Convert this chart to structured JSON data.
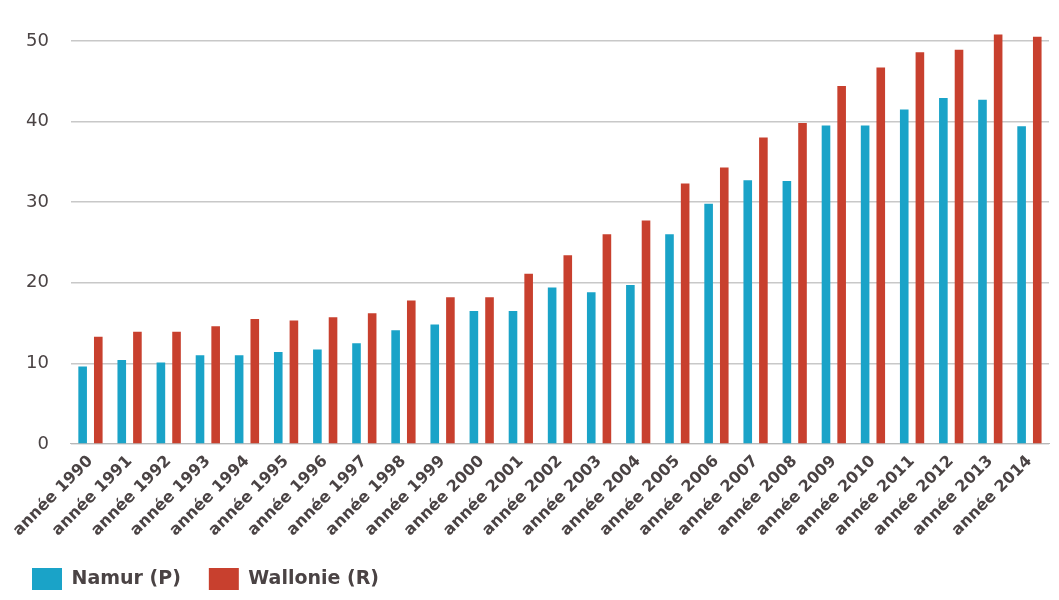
{
  "chart_data": {
    "type": "bar",
    "categories": [
      "année 1990",
      "année 1991",
      "année 1992",
      "année 1993",
      "année 1994",
      "année 1995",
      "année 1996",
      "année 1997",
      "année 1998",
      "année 1999",
      "année 2000",
      "année 2001",
      "année 2002",
      "année 2003",
      "année 2004",
      "année 2005",
      "année 2006",
      "année 2007",
      "année 2008",
      "année 2009",
      "année 2010",
      "année 2011",
      "année 2012",
      "année 2013",
      "année 2014"
    ],
    "series": [
      {
        "name": "Namur (P)",
        "color": "#1aa3c8",
        "values": [
          9.6,
          10.4,
          10.1,
          11.0,
          11.0,
          11.4,
          11.7,
          12.5,
          14.1,
          14.8,
          16.5,
          16.5,
          19.4,
          18.8,
          19.7,
          26.0,
          29.8,
          32.7,
          32.6,
          39.5,
          39.5,
          41.5,
          42.9,
          42.7,
          39.4
        ]
      },
      {
        "name": "Wallonie (R)",
        "color": "#c8402e",
        "values": [
          13.3,
          13.9,
          13.9,
          14.6,
          15.5,
          15.3,
          15.7,
          16.2,
          17.8,
          18.2,
          18.2,
          21.1,
          23.4,
          26.0,
          27.7,
          32.3,
          34.3,
          38.0,
          39.8,
          44.4,
          46.7,
          48.6,
          48.9,
          50.8,
          50.5
        ]
      }
    ],
    "ylim": [
      0,
      51
    ],
    "yticks": [
      0,
      10,
      20,
      30,
      40,
      50
    ],
    "grid": "y",
    "legend": "bottom left"
  }
}
